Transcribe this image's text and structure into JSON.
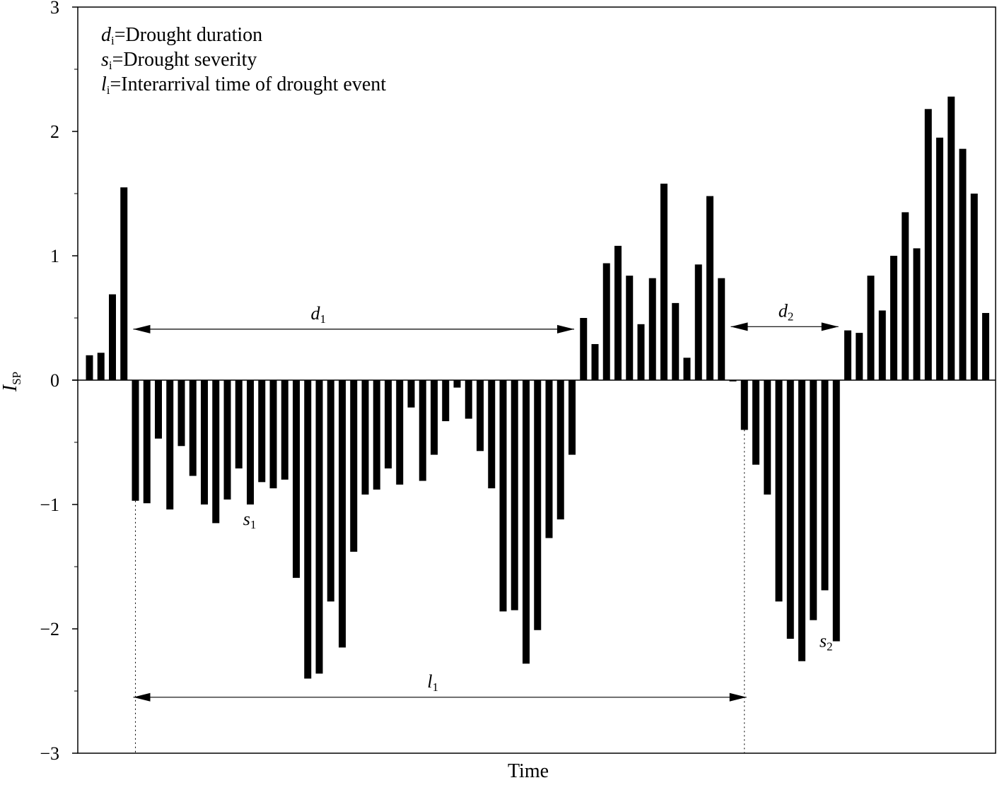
{
  "chart_data": {
    "type": "bar",
    "xlabel": "Time",
    "ylabel": {
      "main": "I",
      "sub": "SP"
    },
    "ylim": [
      -3,
      3
    ],
    "yticks": [
      {
        "value": 3,
        "label": "3"
      },
      {
        "value": 2,
        "label": "2"
      },
      {
        "value": 1,
        "label": "1"
      },
      {
        "value": 0,
        "label": "0"
      },
      {
        "value": -1,
        "label": "−1"
      },
      {
        "value": -2,
        "label": "−2"
      },
      {
        "value": -3,
        "label": "−3"
      }
    ],
    "minor_yticks": [
      2.5,
      1.5,
      0.5,
      -0.5,
      -1.5,
      -2.5
    ],
    "legend": {
      "placement": "top-left",
      "entries": [
        {
          "sym": "d",
          "sub": "i",
          "text": "=Drought  duration"
        },
        {
          "sym": "s",
          "sub": "i",
          "text": "=Drought  severity"
        },
        {
          "sym": "l",
          "sub": "i",
          "text": "=Interarrival  time  of  drought  event"
        }
      ]
    },
    "values": [
      0.2,
      0.22,
      0.69,
      1.55,
      -0.97,
      -0.99,
      -0.47,
      -1.04,
      -0.53,
      -0.77,
      -1.0,
      -1.15,
      -0.96,
      -0.71,
      -1.0,
      -0.82,
      -0.87,
      -0.8,
      -1.59,
      -2.4,
      -2.36,
      -1.78,
      -2.15,
      -1.38,
      -0.92,
      -0.88,
      -0.71,
      -0.84,
      -0.22,
      -0.81,
      -0.6,
      -0.33,
      -0.06,
      -0.31,
      -0.57,
      -0.87,
      -1.86,
      -1.85,
      -2.28,
      -2.01,
      -1.27,
      -1.12,
      -0.6,
      0.5,
      0.29,
      0.94,
      1.08,
      0.84,
      0.45,
      0.82,
      1.58,
      0.62,
      0.18,
      0.93,
      1.48,
      0.82,
      -0.01,
      -0.4,
      -0.68,
      -0.92,
      -1.78,
      -2.08,
      -2.26,
      -1.93,
      -1.69,
      -2.1,
      0.4,
      0.38,
      0.84,
      0.56,
      1.0,
      1.35,
      1.06,
      2.18,
      1.95,
      2.28,
      1.86,
      1.5,
      0.54
    ],
    "annotations": {
      "d1": {
        "sym": "d",
        "sub": "1",
        "from_bar": 4,
        "to_bar": 42,
        "y": 0.41
      },
      "d2": {
        "sym": "d",
        "sub": "2",
        "from_bar": 56,
        "to_bar": 65,
        "y": 0.43
      },
      "l1": {
        "sym": "l",
        "sub": "1",
        "from_bar": 4,
        "to_bar": 57,
        "y": -2.55
      },
      "s1": {
        "sym": "s",
        "sub": "1",
        "bar": 14,
        "y": -1.12
      },
      "s2": {
        "sym": "s",
        "sub": "2",
        "bar": 63,
        "y": -2.1
      }
    }
  }
}
